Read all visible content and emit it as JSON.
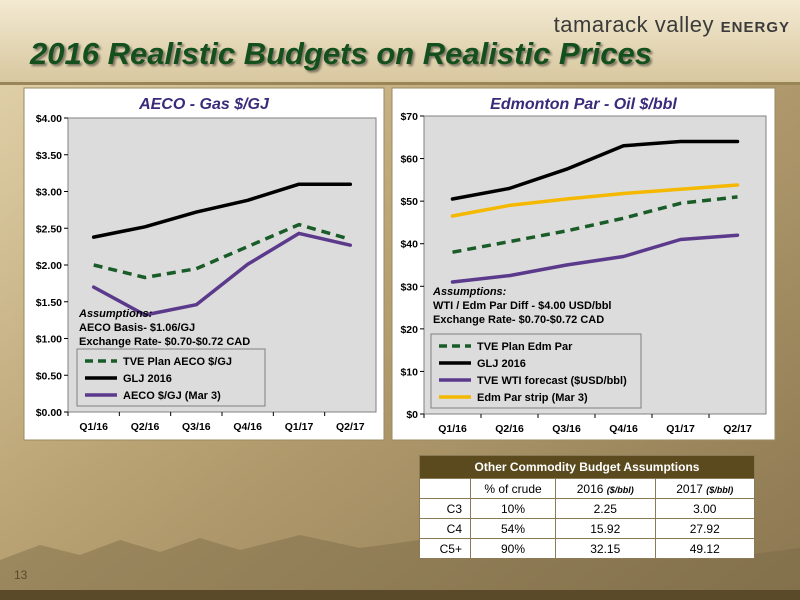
{
  "brand": {
    "name": "tamarack valley",
    "suffix": "ENERGY"
  },
  "slide_title": "2016 Realistic Budgets on Realistic Prices",
  "page_number": "13",
  "colors": {
    "dashed_green": "#1a5c28",
    "black": "#000000",
    "purple": "#5b3a8c",
    "yellow": "#f5b800",
    "title_green": "#14501e",
    "table_header": "#5a4a1e"
  },
  "chart_data": [
    {
      "type": "line",
      "title": "AECO - Gas $/GJ",
      "categories": [
        "Q1/16",
        "Q2/16",
        "Q3/16",
        "Q4/16",
        "Q1/17",
        "Q2/17"
      ],
      "ylim": [
        0,
        4
      ],
      "yticks": [
        "$0.00",
        "$0.50",
        "$1.00",
        "$1.50",
        "$2.00",
        "$2.50",
        "$3.00",
        "$3.50",
        "$4.00"
      ],
      "grid": false,
      "legend_position": "bottom-left",
      "series": [
        {
          "name": "TVE Plan AECO $/GJ",
          "values": [
            2.0,
            1.83,
            1.95,
            2.25,
            2.55,
            2.35
          ],
          "color": "#1a5c28",
          "style": "dashed"
        },
        {
          "name": "GLJ 2016",
          "values": [
            2.38,
            2.52,
            2.72,
            2.88,
            3.1,
            3.1
          ],
          "color": "#000000",
          "style": "solid"
        },
        {
          "name": "AECO $/GJ (Mar 3)",
          "values": [
            1.7,
            1.32,
            1.46,
            2.01,
            2.43,
            2.27
          ],
          "color": "#5b3a8c",
          "style": "solid"
        }
      ],
      "annotation": [
        "Assumptions:",
        "AECO Basis- $1.06/GJ",
        "Exchange Rate- $0.70-$0.72 CAD"
      ]
    },
    {
      "type": "line",
      "title": "Edmonton Par - Oil $/bbl",
      "categories": [
        "Q1/16",
        "Q2/16",
        "Q3/16",
        "Q4/16",
        "Q1/17",
        "Q2/17"
      ],
      "ylim": [
        0,
        70
      ],
      "yticks": [
        "$0",
        "$10",
        "$20",
        "$30",
        "$40",
        "$50",
        "$60",
        "$70"
      ],
      "grid": false,
      "legend_position": "bottom-left",
      "series": [
        {
          "name": "TVE Plan Edm Par",
          "values": [
            38,
            40.5,
            43,
            46,
            49.5,
            51
          ],
          "color": "#1a5c28",
          "style": "dashed"
        },
        {
          "name": "GLJ 2016",
          "values": [
            50.5,
            53,
            57.5,
            63,
            64,
            64
          ],
          "color": "#000000",
          "style": "solid"
        },
        {
          "name": "TVE WTI forecast ($USD/bbl)",
          "values": [
            31,
            32.5,
            35,
            37,
            41,
            42
          ],
          "color": "#5b3a8c",
          "style": "solid"
        },
        {
          "name": "Edm Par strip (Mar 3)",
          "values": [
            46.5,
            49,
            50.5,
            51.8,
            52.8,
            53.8
          ],
          "color": "#f5b800",
          "style": "solid"
        }
      ],
      "annotation": [
        "Assumptions:",
        "WTI / Edm Par Diff - $4.00 USD/bbl",
        "Exchange Rate-  $0.70-$0.72 CAD"
      ]
    },
    {
      "type": "table",
      "title": "Other Commodity Budget Assumptions",
      "headers": [
        "",
        "% of crude",
        "2016",
        "2017"
      ],
      "header_unit": "($/bbl)",
      "rows": [
        [
          "C3",
          "10%",
          "2.25",
          "3.00"
        ],
        [
          "C4",
          "54%",
          "15.92",
          "27.92"
        ],
        [
          "C5+",
          "90%",
          "32.15",
          "49.12"
        ]
      ]
    }
  ]
}
